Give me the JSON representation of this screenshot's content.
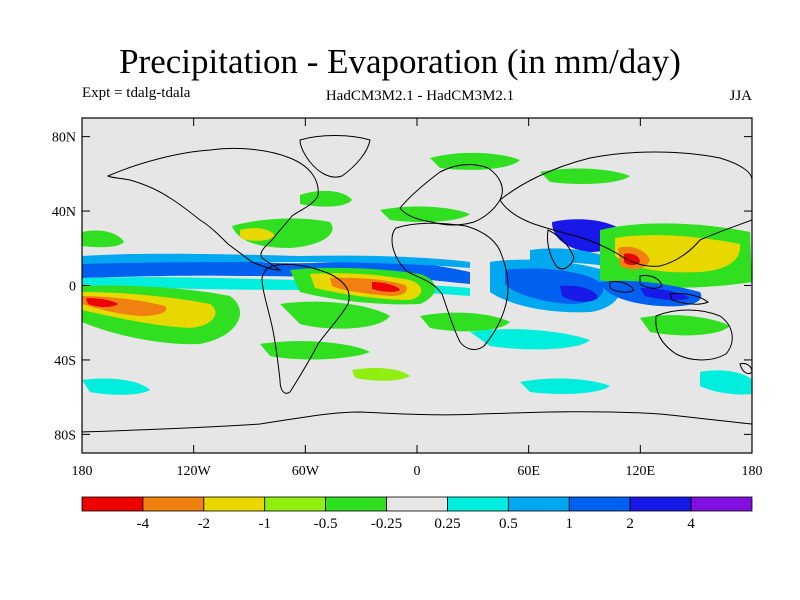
{
  "title": "Precipitation - Evaporation (in mm/day)",
  "subtitle_left": "Expt = tdalg-tdala",
  "subtitle_center": "HadCM3M2.1 - HadCM3M2.1",
  "subtitle_right": "JJA",
  "axes": {
    "lat_ticks": [
      {
        "value": 80,
        "label": "80N"
      },
      {
        "value": 40,
        "label": "40N"
      },
      {
        "value": 0,
        "label": "0"
      },
      {
        "value": -40,
        "label": "40S"
      },
      {
        "value": -80,
        "label": "80S"
      }
    ],
    "lon_ticks": [
      {
        "value": -180,
        "label": "180"
      },
      {
        "value": -120,
        "label": "120W"
      },
      {
        "value": -60,
        "label": "60W"
      },
      {
        "value": 0,
        "label": "0"
      },
      {
        "value": 60,
        "label": "60E"
      },
      {
        "value": 120,
        "label": "120E"
      },
      {
        "value": 180,
        "label": "180"
      }
    ],
    "lon_range": [
      -180,
      180
    ],
    "lat_range": [
      -90,
      90
    ]
  },
  "colorbar": {
    "colors": [
      "#ee0000",
      "#f08010",
      "#e8d800",
      "#90ee10",
      "#30e020",
      "#e6e6e6",
      "#00eedd",
      "#00a8f0",
      "#0060f0",
      "#1818e8",
      "#8010e0"
    ],
    "labels": [
      "-4",
      "-2",
      "-1",
      "-0.5",
      "-0.25",
      "0.25",
      "0.5",
      "1",
      "2",
      "4"
    ]
  },
  "colors": {
    "ocean_background": "#e6e6e6",
    "coastline": "#000000"
  }
}
